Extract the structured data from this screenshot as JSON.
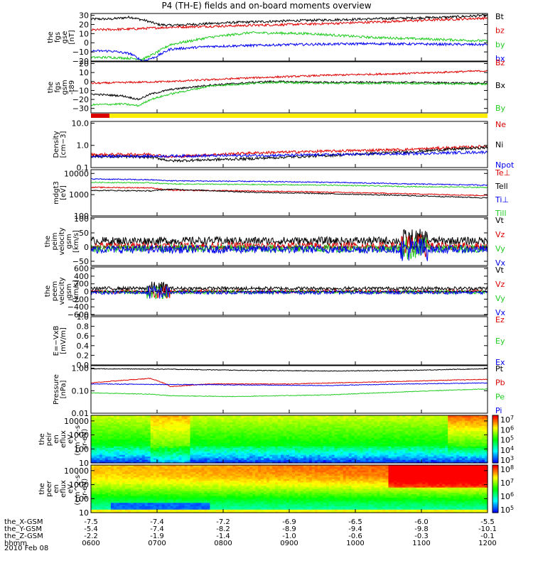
{
  "title": "P4 (TH-E) fields and on-board moments overview",
  "date_label": "2010 Feb 08",
  "colors": {
    "black": "#000000",
    "red": "#dd0000",
    "green": "#22cc22",
    "blue": "#0000ee",
    "yellow": "#ffee00"
  },
  "ephemeris": {
    "rows": [
      {
        "label": "the_X-GSM",
        "values": [
          "-7.5",
          "-7.4",
          "-7.2",
          "-6.9",
          "-6.5",
          "-6.0",
          "-5.5"
        ]
      },
      {
        "label": "the_Y-GSM",
        "values": [
          "-5.4",
          "-7.4",
          "-8.2",
          "-8.9",
          "-9.4",
          "-9.8",
          "-10.1"
        ]
      },
      {
        "label": "the_Z-GSM",
        "values": [
          "-2.2",
          "-1.9",
          "-1.4",
          "-1.0",
          "-0.6",
          "-0.3",
          "-0.1"
        ]
      },
      {
        "label": "hhmm",
        "values": [
          "0600",
          "0700",
          "0800",
          "0900",
          "1000",
          "1100",
          "1200"
        ]
      }
    ]
  },
  "chart_data": [
    {
      "type": "line",
      "ylabel": [
        "the",
        "fgs",
        "gse",
        "[nT]"
      ],
      "yticks": [
        "30",
        "20",
        "10",
        "0",
        "−10",
        "−20"
      ],
      "ylim": [
        -20,
        32
      ],
      "scale": "linear",
      "series": [
        {
          "name": "Bt",
          "color": "#000000",
          "t": [
            0,
            0.05,
            0.1,
            0.14,
            0.17,
            0.2,
            0.25,
            0.35,
            0.5,
            0.7,
            0.9,
            1
          ],
          "v": [
            26,
            26,
            28,
            24,
            20,
            19,
            20,
            22,
            24,
            26,
            28,
            30
          ]
        },
        {
          "name": "bz",
          "color": "#dd0000",
          "t": [
            0,
            0.1,
            0.2,
            0.4,
            0.6,
            0.8,
            1
          ],
          "v": [
            14,
            15,
            17,
            19,
            21,
            24,
            27
          ]
        },
        {
          "name": "by",
          "color": "#22cc22",
          "t": [
            0,
            0.05,
            0.1,
            0.13,
            0.16,
            0.2,
            0.3,
            0.4,
            0.55,
            0.7,
            0.85,
            1
          ],
          "v": [
            -16,
            -16,
            -17,
            -18,
            -12,
            -2,
            6,
            11,
            10,
            6,
            4,
            2
          ]
        },
        {
          "name": "bx",
          "color": "#0000ee",
          "t": [
            0,
            0.05,
            0.1,
            0.13,
            0.16,
            0.2,
            0.3,
            0.5,
            0.7,
            1
          ],
          "v": [
            -9,
            -9,
            -12,
            -20,
            -16,
            -7,
            -4,
            -2,
            -1,
            -2
          ]
        }
      ],
      "noise": 1.3
    },
    {
      "type": "line",
      "ylabel": [
        "the",
        "fgs",
        "gsm",
        "-t89"
      ],
      "yticks": [
        "20",
        "10",
        "0",
        "−10",
        "−20",
        "−30"
      ],
      "ylim": [
        -35,
        22
      ],
      "scale": "linear",
      "series": [
        {
          "name": "Bz",
          "color": "#dd0000",
          "t": [
            0,
            0.2,
            0.4,
            0.6,
            0.8,
            1
          ],
          "v": [
            -2,
            0,
            4,
            7,
            9,
            12
          ]
        },
        {
          "name": "Bx",
          "color": "#000000",
          "t": [
            0,
            0.08,
            0.12,
            0.15,
            0.2,
            0.3,
            0.45,
            0.6,
            0.8,
            1
          ],
          "v": [
            -14,
            -16,
            -20,
            -14,
            -9,
            -4,
            0,
            -1,
            -1,
            -2
          ]
        },
        {
          "name": "By",
          "color": "#22cc22",
          "t": [
            0,
            0.08,
            0.12,
            0.15,
            0.2,
            0.3,
            0.45,
            0.6,
            0.8,
            1
          ],
          "v": [
            -26,
            -25,
            -27,
            -20,
            -14,
            -5,
            -1,
            -2,
            -2,
            -3
          ]
        }
      ],
      "noise": 1.0
    },
    {
      "type": "line",
      "ylabel": [
        "Density",
        "[cm−3]"
      ],
      "yticks": [
        "10.0",
        "1.0",
        "0.1"
      ],
      "ylim": [
        0.1,
        12
      ],
      "scale": "log",
      "series": [
        {
          "name": "Ne",
          "color": "#dd0000",
          "t": [
            0,
            0.15,
            0.2,
            0.4,
            0.6,
            0.8,
            1
          ],
          "v": [
            0.38,
            0.4,
            0.3,
            0.45,
            0.55,
            0.65,
            0.9
          ]
        },
        {
          "name": "Ni",
          "color": "#000000",
          "t": [
            0,
            0.15,
            0.2,
            0.4,
            0.6,
            0.8,
            1
          ],
          "v": [
            0.32,
            0.3,
            0.2,
            0.25,
            0.35,
            0.5,
            0.8
          ]
        },
        {
          "name": "Npot",
          "color": "#0000ee",
          "t": [
            0,
            0.2,
            0.5,
            0.8,
            1
          ],
          "v": [
            0.32,
            0.33,
            0.36,
            0.42,
            0.5
          ]
        }
      ],
      "noise": 0.12
    },
    {
      "type": "line",
      "ylabel": [
        "mdgt3",
        "[eV]"
      ],
      "yticks": [
        "10000",
        "1000",
        "100"
      ],
      "ylim": [
        100,
        15000
      ],
      "scale": "log",
      "series": [
        {
          "name": "Te⊥",
          "color": "#dd0000",
          "t": [
            0,
            0.15,
            0.2,
            0.4,
            0.6,
            0.8,
            1
          ],
          "v": [
            2200,
            2100,
            1600,
            1500,
            1300,
            1100,
            900
          ]
        },
        {
          "name": "Tell",
          "color": "#000000",
          "t": [
            0,
            0.15,
            0.2,
            0.4,
            0.6,
            0.8,
            1
          ],
          "v": [
            1600,
            1500,
            1800,
            1300,
            1100,
            900,
            700
          ]
        },
        {
          "name": "Ti⊥",
          "color": "#0000ee",
          "t": [
            0,
            0.15,
            0.2,
            0.4,
            0.6,
            0.8,
            1
          ],
          "v": [
            5500,
            5000,
            4500,
            4200,
            3800,
            3200,
            2800
          ]
        },
        {
          "name": "Till",
          "color": "#22cc22",
          "t": [
            0,
            0.15,
            0.2,
            0.4,
            0.6,
            0.8,
            1
          ],
          "v": [
            3800,
            3600,
            3200,
            3000,
            2800,
            2400,
            2200
          ]
        }
      ],
      "noise": 0.05
    },
    {
      "type": "line",
      "ylabel": [
        "the",
        "peim",
        "velocity",
        "gsm",
        "[km/s]"
      ],
      "yticks": [
        "100",
        "50",
        "0",
        "−50"
      ],
      "ylim": [
        -65,
        105
      ],
      "scale": "linear",
      "series": [
        {
          "name": "Vt",
          "color": "#000000",
          "t": [
            0,
            1
          ],
          "v": [
            22,
            22
          ]
        },
        {
          "name": "Vz",
          "color": "#dd0000",
          "t": [
            0,
            1
          ],
          "v": [
            3,
            3
          ]
        },
        {
          "name": "Vy",
          "color": "#22cc22",
          "t": [
            0,
            1
          ],
          "v": [
            -5,
            -5
          ]
        },
        {
          "name": "Vx",
          "color": "#0000ee",
          "t": [
            0,
            1
          ],
          "v": [
            -8,
            -8
          ]
        }
      ],
      "noise": 14
    },
    {
      "type": "line",
      "ylabel": [
        "the",
        "peem",
        "velocity",
        "gsm",
        "[km/s]"
      ],
      "yticks": [
        "600",
        "400",
        "200",
        "0",
        "−200",
        "−400",
        "−600"
      ],
      "ylim": [
        -620,
        640
      ],
      "scale": "linear",
      "series": [
        {
          "name": "Vt",
          "color": "#000000",
          "t": [
            0,
            1
          ],
          "v": [
            80,
            80
          ]
        },
        {
          "name": "Vz",
          "color": "#dd0000",
          "t": [
            0,
            1
          ],
          "v": [
            0,
            0
          ]
        },
        {
          "name": "Vy",
          "color": "#22cc22",
          "t": [
            0,
            1
          ],
          "v": [
            -15,
            -15
          ]
        },
        {
          "name": "Vx",
          "color": "#0000ee",
          "t": [
            0,
            1
          ],
          "v": [
            -25,
            -25
          ]
        }
      ],
      "noise": 45
    },
    {
      "type": "line",
      "ylabel": [
        "E=−VxB",
        "[mV/m]"
      ],
      "yticks": [
        "1.0",
        "0.8",
        "0.6",
        "0.4",
        "0.2",
        "0.0"
      ],
      "ylim": [
        0,
        1
      ],
      "scale": "linear",
      "series": [
        {
          "name": "Ez",
          "color": "#dd0000",
          "t": [],
          "v": []
        },
        {
          "name": "Ey",
          "color": "#22cc22",
          "t": [],
          "v": []
        },
        {
          "name": "Ex",
          "color": "#0000ee",
          "t": [],
          "v": []
        }
      ],
      "noise": 0
    },
    {
      "type": "line",
      "ylabel": [
        "Pressure",
        "[nPa]"
      ],
      "yticks": [
        "1.00",
        "0.10",
        "0.01"
      ],
      "ylim": [
        0.01,
        1.3
      ],
      "scale": "log",
      "series": [
        {
          "name": "Pt",
          "color": "#000000",
          "t": [
            0,
            0.2,
            0.4,
            0.6,
            0.8,
            1
          ],
          "v": [
            0.95,
            0.9,
            0.8,
            0.75,
            0.8,
            0.95
          ]
        },
        {
          "name": "Pb",
          "color": "#dd0000",
          "t": [
            0,
            0.15,
            0.2,
            0.3,
            0.5,
            0.7,
            1
          ],
          "v": [
            0.22,
            0.35,
            0.15,
            0.2,
            0.2,
            0.24,
            0.32
          ]
        },
        {
          "name": "Pe",
          "color": "#22cc22",
          "t": [
            0,
            0.15,
            0.2,
            0.35,
            0.6,
            0.8,
            1
          ],
          "v": [
            0.08,
            0.07,
            0.06,
            0.055,
            0.065,
            0.09,
            0.12
          ]
        },
        {
          "name": "Pi",
          "color": "#0000ee",
          "t": [
            0,
            0.2,
            0.4,
            0.6,
            0.8,
            1
          ],
          "v": [
            0.2,
            0.19,
            0.18,
            0.17,
            0.2,
            0.22
          ]
        }
      ],
      "noise": 0.03
    },
    {
      "type": "heatmap",
      "ylabel": [
        "the",
        "peir",
        "en",
        "eflux",
        "eV",
        "(cm^2-s-",
        "sr-eV)"
      ],
      "yticks": [
        "10000",
        "1000",
        "100",
        "10"
      ],
      "ylim": [
        10,
        25000
      ],
      "scale": "log",
      "colorbar_ticks": [
        "10^7",
        "10^6",
        "10^5",
        "10^4",
        "10^3"
      ]
    },
    {
      "type": "heatmap",
      "ylabel": [
        "the",
        "peer",
        "en",
        "eflux",
        "eV",
        "(cm^2-s-",
        "sr-eV)"
      ],
      "yticks": [
        "10000",
        "1000",
        "100",
        "10"
      ],
      "ylim": [
        10,
        25000
      ],
      "scale": "log",
      "colorbar_ticks": [
        "10^8",
        "10^7",
        "10^6",
        "10^5"
      ]
    }
  ]
}
